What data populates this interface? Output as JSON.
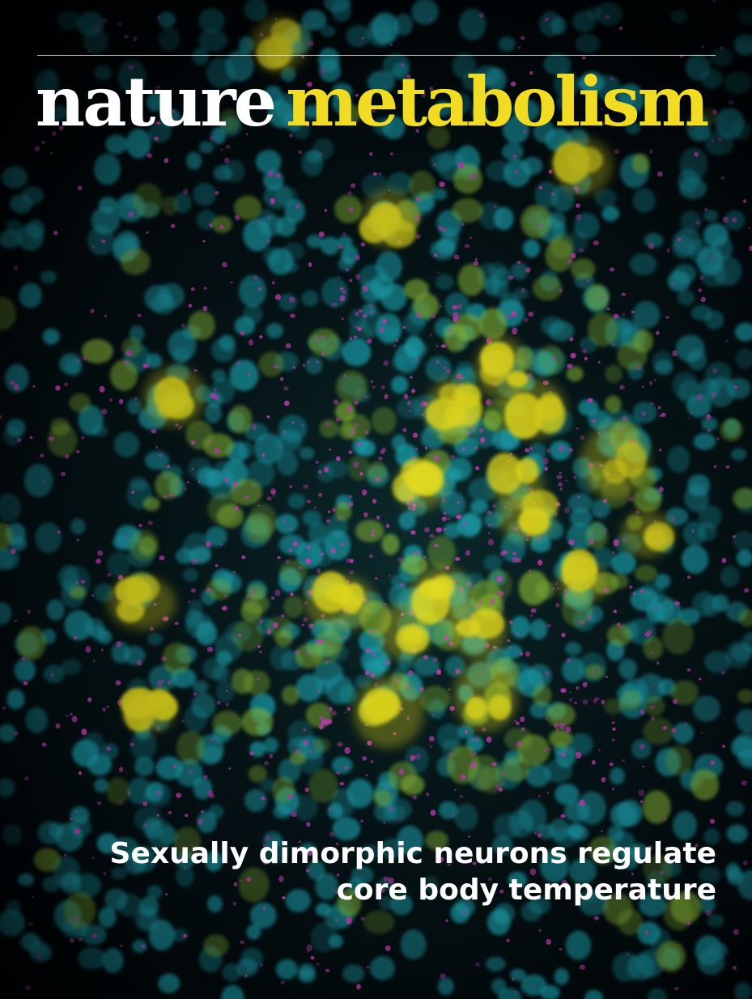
{
  "journal": {
    "title_part1": "nature",
    "title_part2": "metabolism"
  },
  "headline": {
    "line1": "Sexually dimorphic neurons regulate",
    "line2": "core body temperature"
  },
  "colors": {
    "background": "#03080a",
    "masthead_white": "#ffffff",
    "masthead_yellow": "#f2dc23",
    "cell_cyan": "#1ea7b5",
    "cell_yellow": "#e8e020",
    "cell_magenta": "#d040c0",
    "cell_green": "#8fc23a"
  },
  "image": {
    "subject": "fluorescence-micrograph-neurons"
  }
}
